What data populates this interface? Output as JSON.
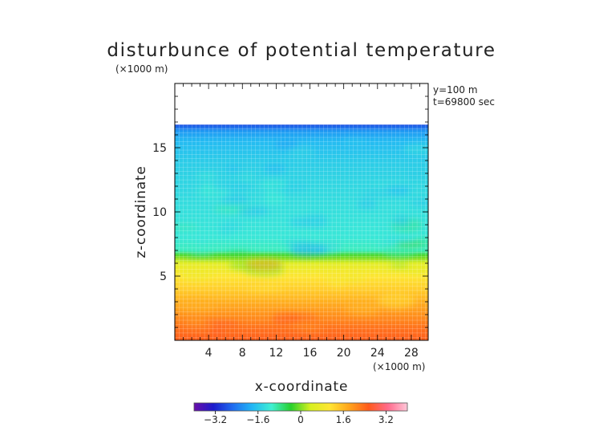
{
  "chart_data": {
    "type": "heatmap",
    "title": "disturbunce of potential temperature",
    "y_unit_label": "(×1000 m)",
    "x_unit_label": "(×1000 m)",
    "xlabel": "x-coordinate",
    "ylabel": "z-coordinate",
    "annotations": [
      "y=100 m",
      "t=69800 sec"
    ],
    "xlim": [
      0,
      30
    ],
    "ylim": [
      0,
      20
    ],
    "x_ticks": [
      4,
      8,
      12,
      16,
      20,
      24,
      28
    ],
    "y_ticks": [
      5,
      10,
      15
    ],
    "domain_top": 16.8,
    "colorbar": {
      "min": -4,
      "max": 4,
      "ticks": [
        {
          "value": -3.2,
          "label": "−3.2"
        },
        {
          "value": -1.6,
          "label": "−1.6"
        },
        {
          "value": 0,
          "label": "0"
        },
        {
          "value": 1.6,
          "label": "1.6"
        },
        {
          "value": 3.2,
          "label": "3.2"
        }
      ],
      "colors": [
        "#6a0ea8",
        "#1b1bcc",
        "#1f6cf0",
        "#21b6f5",
        "#3ff0d2",
        "#27d02b",
        "#d7f020",
        "#ffe533",
        "#ffa41c",
        "#ff5a1c",
        "#ff6b8c",
        "#ffc7d9"
      ]
    },
    "vertical_profile": [
      {
        "z": 0.0,
        "value": 2.5
      },
      {
        "z": 1.0,
        "value": 2.3
      },
      {
        "z": 2.0,
        "value": 2.0
      },
      {
        "z": 3.0,
        "value": 1.7
      },
      {
        "z": 4.0,
        "value": 1.35
      },
      {
        "z": 5.0,
        "value": 1.05
      },
      {
        "z": 6.0,
        "value": 0.55
      },
      {
        "z": 6.6,
        "value": -0.2
      },
      {
        "z": 7.0,
        "value": -1.0
      },
      {
        "z": 8.0,
        "value": -1.2
      },
      {
        "z": 10.0,
        "value": -1.3
      },
      {
        "z": 12.0,
        "value": -1.4
      },
      {
        "z": 14.0,
        "value": -1.55
      },
      {
        "z": 15.5,
        "value": -1.75
      },
      {
        "z": 16.3,
        "value": -2.1
      },
      {
        "z": 16.8,
        "value": -2.8
      }
    ]
  }
}
